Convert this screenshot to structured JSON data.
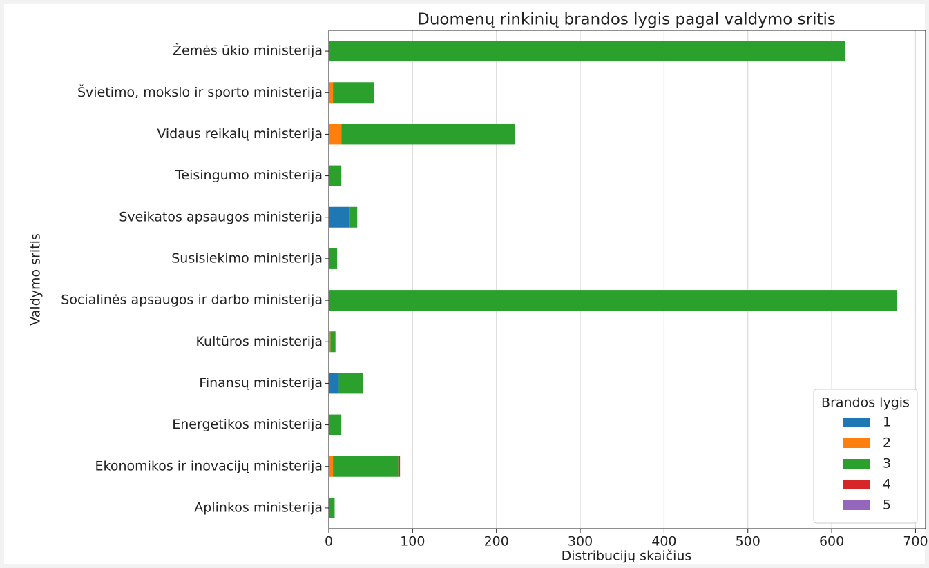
{
  "chart_data": {
    "type": "stacked-barh",
    "title": "Duomenų rinkinių brandos lygis pagal valdymo sritis",
    "xlabel": "Distribucijų skaičius",
    "ylabel": "Valdymo sritis",
    "categories": [
      "Žemės ūkio ministerija",
      "Švietimo, mokslo ir sporto ministerija",
      "Vidaus reikalų ministerija",
      "Teisingumo ministerija",
      "Sveikatos apsaugos ministerija",
      "Susisiekimo ministerija",
      "Socialinės apsaugos ir darbo ministerija",
      "Kultūros ministerija",
      "Finansų ministerija",
      "Energetikos ministerija",
      "Ekonomikos ir inovacijų ministerija",
      "Aplinkos ministerija"
    ],
    "series": [
      {
        "name": "1",
        "color": "#1f77b4",
        "values": [
          0,
          0,
          0,
          0,
          25,
          0,
          0,
          0,
          12,
          0,
          0,
          0
        ]
      },
      {
        "name": "2",
        "color": "#ff7f0e",
        "values": [
          0,
          5,
          15,
          0,
          0,
          0,
          0,
          2,
          0,
          0,
          5,
          0
        ]
      },
      {
        "name": "3",
        "color": "#2ca02c",
        "values": [
          616,
          49,
          207,
          15,
          9,
          10,
          678,
          6,
          29,
          15,
          78,
          7
        ]
      },
      {
        "name": "4",
        "color": "#d62728",
        "values": [
          0,
          0,
          0,
          0,
          0,
          0,
          0,
          0,
          0,
          0,
          2,
          0
        ]
      },
      {
        "name": "5",
        "color": "#9467bd",
        "values": [
          0,
          0,
          0,
          0,
          0,
          0,
          0,
          0,
          0,
          0,
          0,
          0
        ]
      }
    ],
    "legend_title": "Brandos lygis",
    "legend": "lower right",
    "xlim": [
      0,
      712
    ],
    "xticks": [
      0,
      100,
      200,
      300,
      400,
      500,
      600,
      700
    ],
    "grid": true
  }
}
